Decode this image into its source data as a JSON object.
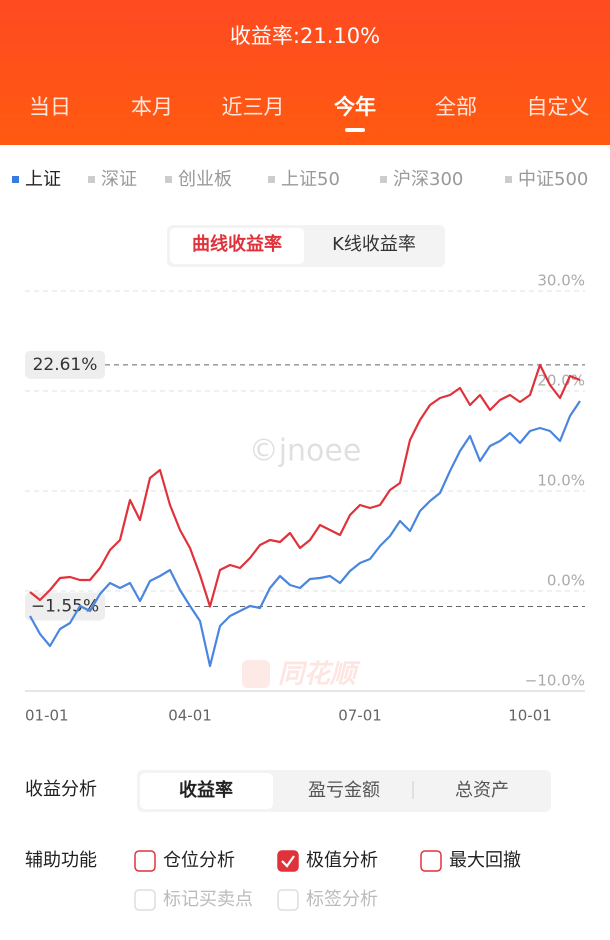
{
  "header": {
    "title": "收益率:21.10%",
    "tabs": [
      "当日",
      "本月",
      "近三月",
      "今年",
      "全部",
      "自定义"
    ],
    "selected_tab": 3
  },
  "indices": {
    "items": [
      "上证",
      "深证",
      "创业板",
      "上证50",
      "沪深300",
      "中证500"
    ],
    "selected": 0,
    "selected_color": "#3a7be0"
  },
  "chart_toggle": {
    "options": [
      "曲线收益率",
      "K线收益率"
    ],
    "selected": 0
  },
  "chart_data": {
    "type": "line",
    "categories": [
      "01-01",
      null,
      null,
      null,
      null,
      null,
      null,
      null,
      null,
      null,
      null,
      null,
      null,
      null,
      null,
      null,
      "04-01",
      null,
      null,
      null,
      null,
      null,
      null,
      null,
      null,
      null,
      null,
      null,
      null,
      null,
      null,
      null,
      null,
      "07-01",
      null,
      null,
      null,
      null,
      null,
      null,
      null,
      null,
      null,
      null,
      null,
      null,
      null,
      null,
      null,
      null,
      "10-01",
      null,
      null,
      null,
      null,
      null
    ],
    "series": [
      {
        "color": "#e0323a",
        "values": [
          -0.1,
          -0.9,
          0.1,
          1.3,
          1.4,
          1.1,
          1.1,
          2.3,
          4.1,
          5.1,
          9.1,
          7.1,
          11.3,
          12.1,
          8.6,
          6.1,
          4.3,
          1.6,
          -1.55,
          2.1,
          2.6,
          2.3,
          3.3,
          4.6,
          5.1,
          4.9,
          5.8,
          4.3,
          5.1,
          6.6,
          6.1,
          5.6,
          7.6,
          8.6,
          8.3,
          8.6,
          10.1,
          10.8,
          15.1,
          17.1,
          18.6,
          19.3,
          19.6,
          20.3,
          18.6,
          19.6,
          18.1,
          19.1,
          19.6,
          18.9,
          19.6,
          22.61,
          20.6,
          19.3,
          21.5,
          21.1
        ]
      },
      {
        "color": "#4a86e0",
        "values": [
          -2.5,
          -4.3,
          -5.5,
          -3.8,
          -3.2,
          -1.5,
          -2.0,
          -0.3,
          0.8,
          0.3,
          0.8,
          -1.0,
          1.0,
          1.5,
          2.1,
          0.1,
          -1.5,
          -3.0,
          -7.5,
          -3.5,
          -2.5,
          -2.0,
          -1.5,
          -1.7,
          0.3,
          1.5,
          0.6,
          0.3,
          1.2,
          1.3,
          1.5,
          0.8,
          2.0,
          2.8,
          3.2,
          4.5,
          5.5,
          7.0,
          6.0,
          8.0,
          9.0,
          9.8,
          12.0,
          14.0,
          15.5,
          13.0,
          14.5,
          15.0,
          15.8,
          14.8,
          16.0,
          16.3,
          16.0,
          15.0,
          17.5,
          19.0
        ]
      }
    ],
    "ylim": [
      -10,
      30
    ],
    "yticks": [
      {
        "value": -10,
        "label": "−10.0%"
      },
      {
        "value": 0,
        "label": "0.0%"
      },
      {
        "value": 10,
        "label": "10.0%"
      },
      {
        "value": 20,
        "label": "20.0%"
      },
      {
        "value": 30,
        "label": "30.0%"
      }
    ],
    "grid": true,
    "annotations": [
      {
        "value": 22.61,
        "label": "22.61%"
      },
      {
        "value": -1.55,
        "label": "−1.55%"
      }
    ],
    "watermarks": [
      "©jnoee",
      "同花顺"
    ]
  },
  "analysis": {
    "label": "收益分析",
    "options": [
      "收益率",
      "盈亏金额",
      "总资产"
    ],
    "selected": 0
  },
  "aux": {
    "label": "辅助功能",
    "options": [
      {
        "text": "仓位分析",
        "checked": false,
        "enabled": true
      },
      {
        "text": "极值分析",
        "checked": true,
        "enabled": true
      },
      {
        "text": "最大回撤",
        "checked": false,
        "enabled": true
      },
      {
        "text": "标记买卖点",
        "checked": false,
        "enabled": false
      },
      {
        "text": "标签分析",
        "checked": false,
        "enabled": false
      }
    ]
  }
}
